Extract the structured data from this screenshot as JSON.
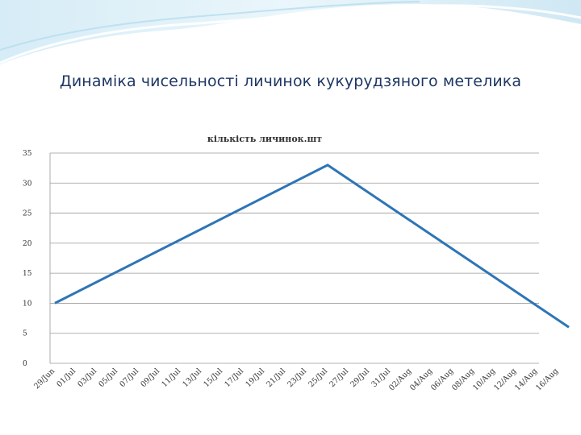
{
  "slide": {
    "title": "Динаміка чисельності личинок кукурудзяного метелика"
  },
  "chart_data": {
    "type": "line",
    "title": "кількість личинок.шт",
    "xlabel": "",
    "ylabel": "",
    "ylim": [
      0,
      35
    ],
    "yticks": [
      0,
      5,
      10,
      15,
      20,
      25,
      30,
      35
    ],
    "grid": true,
    "legend": "none",
    "x_labels": [
      "29/Jun",
      "01/Jul",
      "03/Jul",
      "05/Jul",
      "07/Jul",
      "09/Jul",
      "11/Jul",
      "13/Jul",
      "15/Jul",
      "17/Jul",
      "19/Jul",
      "21/Jul",
      "23/Jul",
      "25/Jul",
      "27/Jul",
      "29/Jul",
      "31/Jul",
      "02/Aug",
      "04/Aug",
      "06/Aug",
      "08/Aug",
      "10/Aug",
      "12/Aug",
      "14/Aug",
      "16/Aug"
    ],
    "series": [
      {
        "name": "",
        "color": "#2e75b6",
        "points": [
          {
            "x": "29/Jun",
            "y": 10
          },
          {
            "x": "25/Jul",
            "y": 33
          },
          {
            "x": "17/Aug",
            "y": 6
          }
        ]
      }
    ]
  }
}
